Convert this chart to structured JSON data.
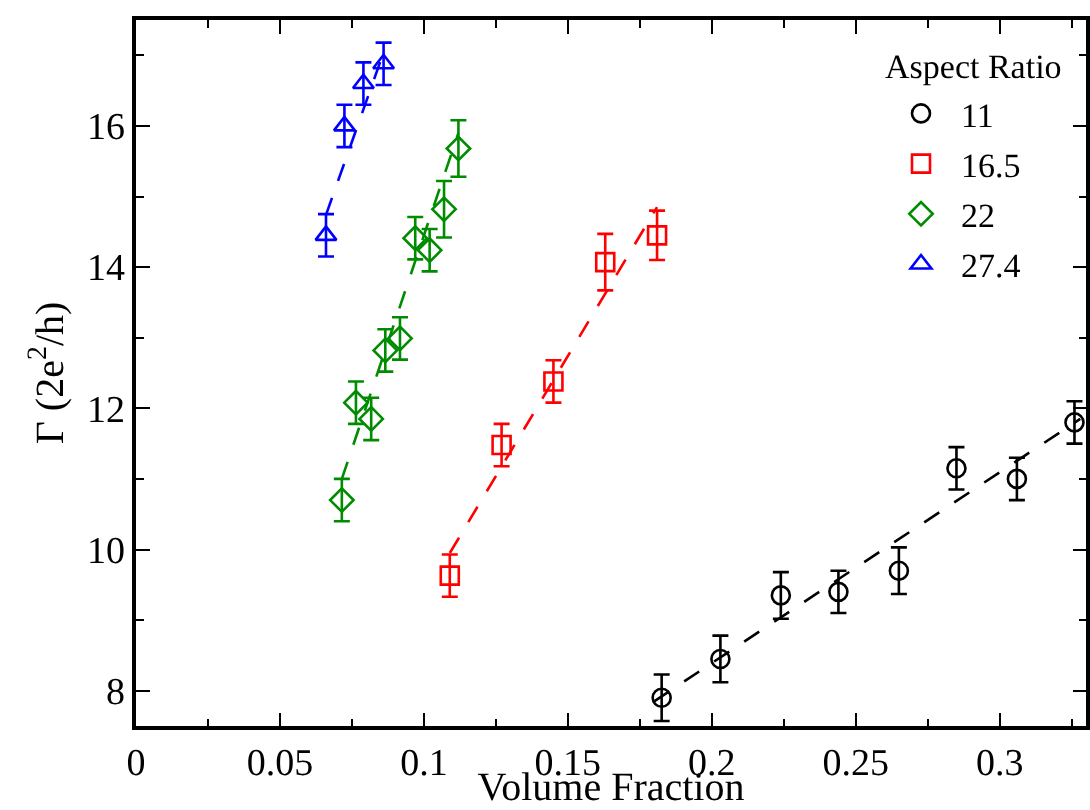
{
  "chart_data": {
    "type": "scatter",
    "xlabel": "Volume Fraction",
    "ylabel": "Γ (2e$^{2}$/h)",
    "legend_title": "Aspect Ratio",
    "legend": "top right",
    "grid": false,
    "xlim": [
      0,
      0.33
    ],
    "xticks": [
      0,
      0.05,
      0.1,
      0.15,
      0.2,
      0.25,
      0.3
    ],
    "ylim": [
      7.5,
      17.5
    ],
    "yticks": [
      8,
      10,
      12,
      14,
      16
    ],
    "series": [
      {
        "name": "11",
        "color": "#000000",
        "marker": "circle",
        "x": [
          0.1826,
          0.203,
          0.224,
          0.244,
          0.265,
          0.285,
          0.306,
          0.326
        ],
        "values": [
          7.9,
          8.45,
          9.35,
          9.4,
          9.7,
          11.15,
          11.0,
          11.8
        ],
        "errors": [
          0.33,
          0.33,
          0.33,
          0.3,
          0.33,
          0.3,
          0.3,
          0.3
        ]
      },
      {
        "name": "16.5",
        "color": "#ff0000",
        "marker": "square",
        "x": [
          0.109,
          0.127,
          0.145,
          0.163,
          0.181
        ],
        "values": [
          9.63,
          11.48,
          12.38,
          14.07,
          14.45
        ],
        "errors": [
          0.3,
          0.3,
          0.3,
          0.4,
          0.35
        ]
      },
      {
        "name": "22",
        "color": "#008c00",
        "marker": "diamond",
        "x": [
          0.0715,
          0.0764,
          0.0817,
          0.0866,
          0.0917,
          0.097,
          0.102,
          0.107,
          0.112
        ],
        "values": [
          10.7,
          12.08,
          11.85,
          12.82,
          12.99,
          14.41,
          14.24,
          14.82,
          15.68
        ],
        "errors": [
          0.3,
          0.3,
          0.3,
          0.3,
          0.3,
          0.3,
          0.3,
          0.4,
          0.4
        ]
      },
      {
        "name": "27.4",
        "color": "#0000ff",
        "marker": "triangle",
        "x": [
          0.066,
          0.0724,
          0.079,
          0.086
        ],
        "values": [
          14.45,
          16.0,
          16.6,
          16.88
        ],
        "errors": [
          0.3,
          0.3,
          0.3,
          0.3
        ]
      },
      {
        "type": "line",
        "color": "#000000",
        "line_style": "dashed",
        "marker": "none",
        "x": [
          0.18,
          0.328
        ],
        "values": [
          7.85,
          11.85
        ]
      },
      {
        "type": "line",
        "color": "#ff0000",
        "line_style": "dashed",
        "marker": "none",
        "x": [
          0.109,
          0.181
        ],
        "values": [
          9.95,
          14.85
        ]
      },
      {
        "type": "line",
        "color": "#008c00",
        "line_style": "dashed",
        "marker": "none",
        "x": [
          0.0715,
          0.112
        ],
        "values": [
          11.0,
          15.9
        ]
      },
      {
        "type": "line",
        "color": "#0000ff",
        "line_style": "dashed",
        "marker": "none",
        "x": [
          0.066,
          0.086
        ],
        "values": [
          14.74,
          17.04
        ]
      }
    ]
  }
}
